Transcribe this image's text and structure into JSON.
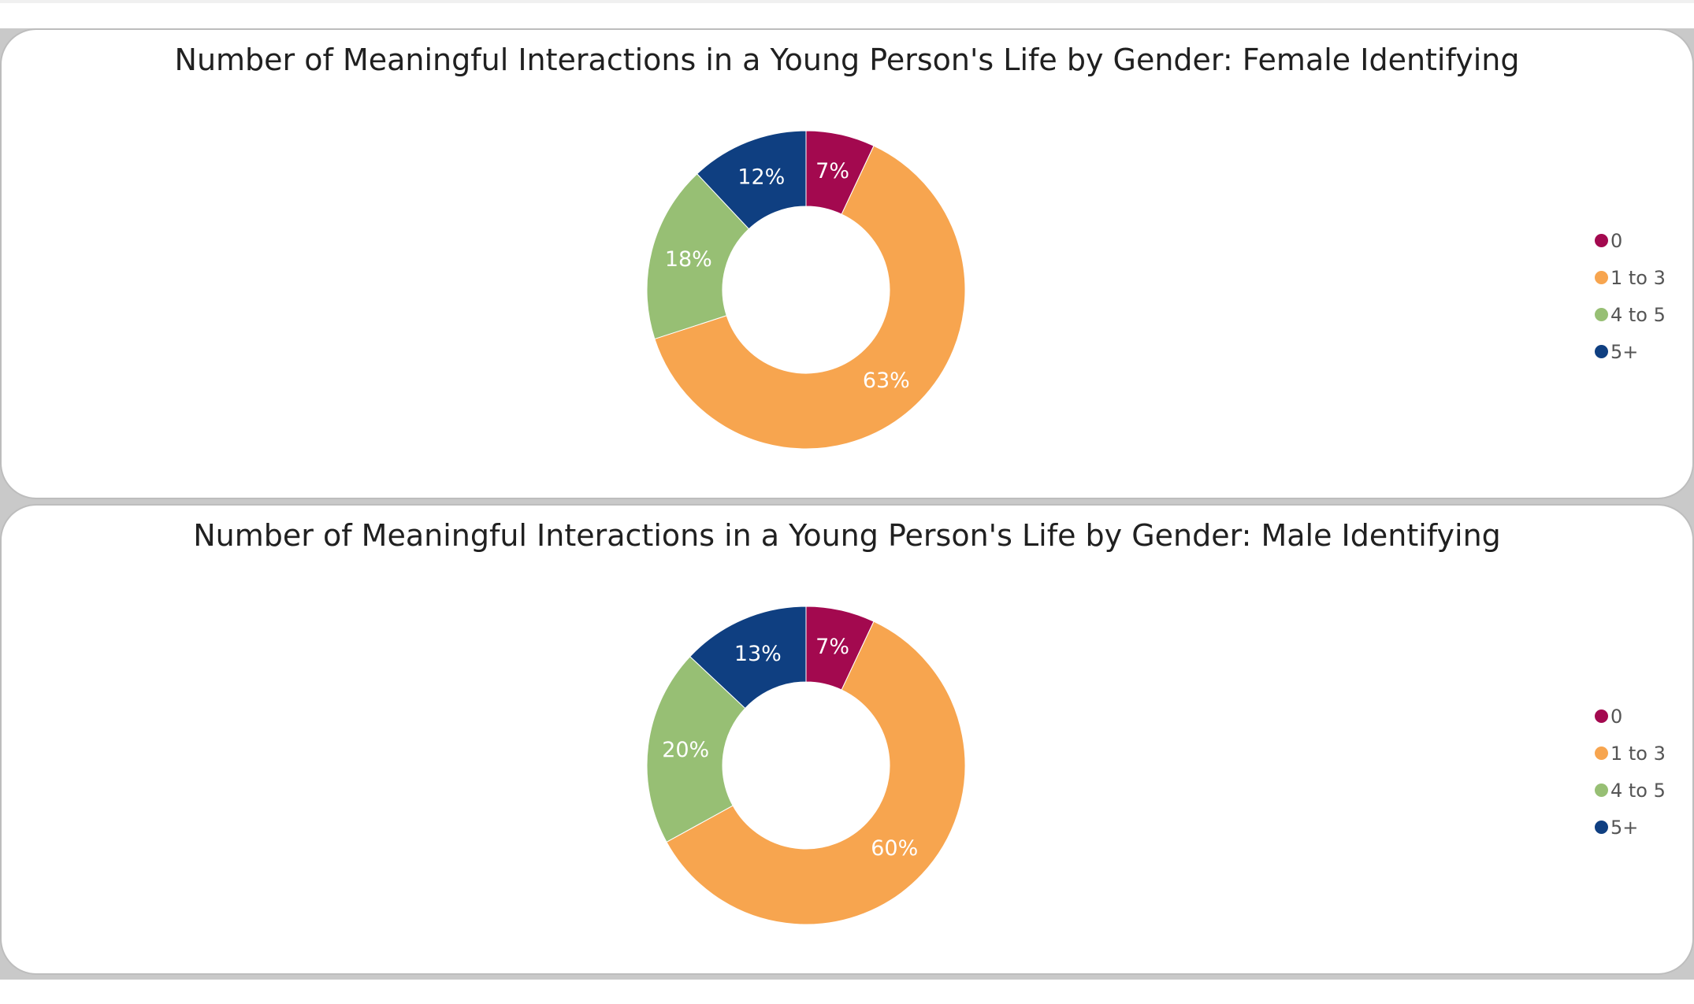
{
  "chart_data": [
    {
      "type": "donut",
      "title": "Number of Meaningful Interactions in a Young Person's Life by Gender: Female Identifying",
      "categories": [
        "0",
        "1 to 3",
        "4 to 5",
        "5+"
      ],
      "values": [
        7,
        63,
        18,
        12
      ],
      "labels": [
        "7%",
        "63%",
        "18%",
        "12%"
      ],
      "colors": [
        "#a3094f",
        "#f7a54f",
        "#97bf74",
        "#0f3f81"
      ],
      "legend": {
        "position": "right"
      }
    },
    {
      "type": "donut",
      "title": "Number of Meaningful Interactions in a Young Person's Life by Gender: Male Identifying",
      "categories": [
        "0",
        "1 to 3",
        "4 to 5",
        "5+"
      ],
      "values": [
        7,
        60,
        20,
        13
      ],
      "labels": [
        "7%",
        "60%",
        "20%",
        "13%"
      ],
      "colors": [
        "#a3094f",
        "#f7a54f",
        "#97bf74",
        "#0f3f81"
      ],
      "legend": {
        "position": "right"
      }
    }
  ]
}
